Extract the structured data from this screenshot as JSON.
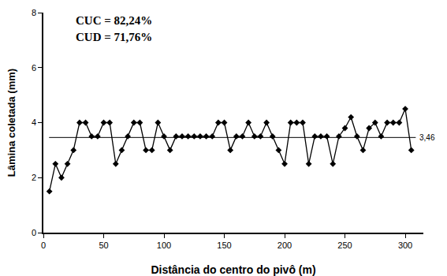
{
  "chart_data": {
    "type": "line",
    "x_label": "Distância do centro do pivô (m)",
    "y_label": "Lâmina coletada (mm)",
    "x": [
      5,
      10,
      15,
      20,
      25,
      30,
      35,
      40,
      45,
      50,
      55,
      60,
      65,
      70,
      75,
      80,
      85,
      90,
      95,
      100,
      105,
      110,
      115,
      120,
      125,
      130,
      135,
      140,
      145,
      150,
      155,
      160,
      165,
      170,
      175,
      180,
      185,
      190,
      195,
      200,
      205,
      210,
      215,
      220,
      225,
      230,
      235,
      240,
      245,
      250,
      255,
      260,
      265,
      270,
      275,
      280,
      285,
      290,
      295,
      300,
      305
    ],
    "values": [
      1.5,
      2.5,
      2.0,
      2.5,
      3.0,
      4.0,
      4.0,
      3.5,
      3.5,
      4.0,
      4.0,
      2.5,
      3.0,
      3.5,
      4.0,
      4.0,
      3.0,
      3.0,
      4.0,
      3.5,
      3.0,
      3.5,
      3.5,
      3.5,
      3.5,
      3.5,
      3.5,
      3.5,
      4.0,
      4.0,
      3.0,
      3.5,
      3.5,
      4.0,
      3.5,
      3.5,
      4.0,
      3.5,
      3.0,
      2.5,
      4.0,
      4.0,
      4.0,
      2.5,
      3.5,
      3.5,
      3.5,
      2.5,
      3.5,
      3.8,
      4.2,
      3.5,
      3.0,
      3.8,
      4.0,
      3.5,
      4.0,
      4.0,
      4.0,
      4.5,
      3.0
    ],
    "color": "#000000",
    "marker": "diamond",
    "mean_line": {
      "value": 3.46,
      "label": "3,46"
    },
    "annotations": [
      "CUC = 82,24%",
      "CUD = 71,76%"
    ],
    "xlim": [
      0,
      315
    ],
    "xticks": [
      0,
      50,
      100,
      150,
      200,
      250,
      300
    ],
    "ylim": [
      0,
      8
    ],
    "yticks": [
      0,
      2,
      4,
      6,
      8
    ],
    "grid": false
  }
}
